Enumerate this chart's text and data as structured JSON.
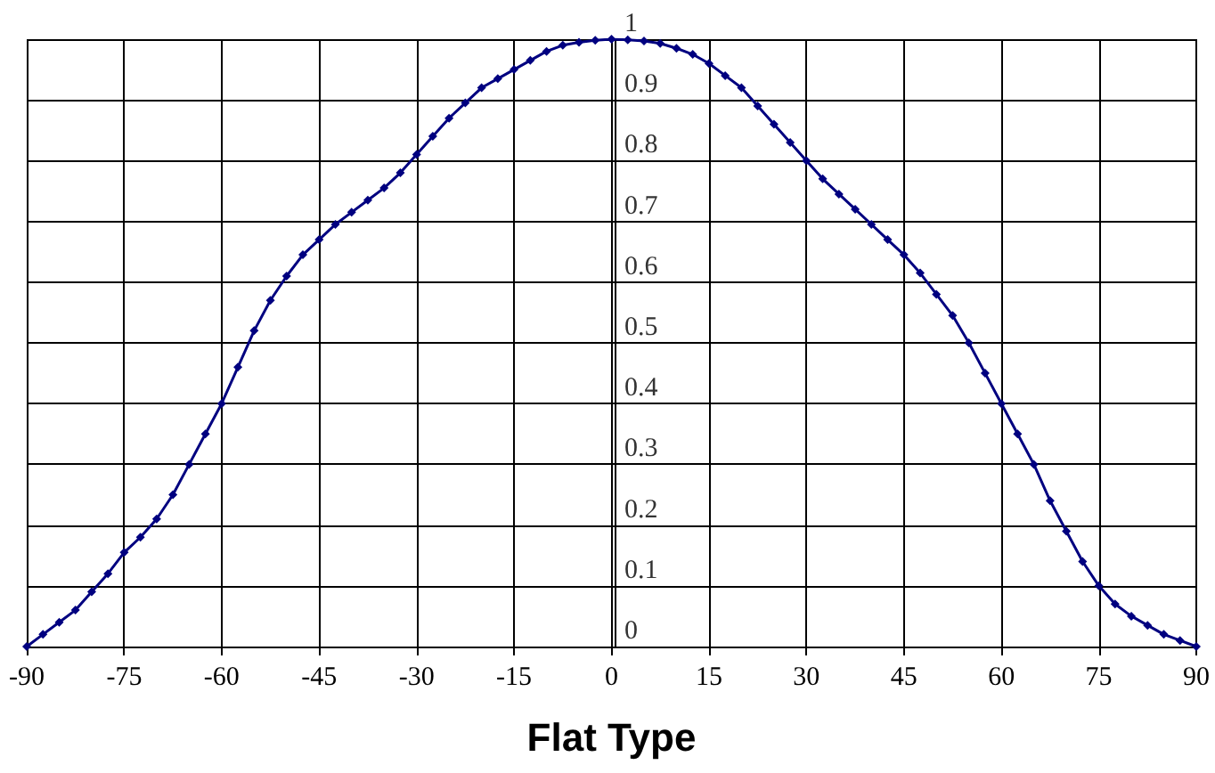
{
  "chart_data": {
    "type": "line",
    "xlabel": "Flat Type",
    "x": [
      -90,
      -87.5,
      -85,
      -82.5,
      -80,
      -77.5,
      -75,
      -72.5,
      -70,
      -67.5,
      -65,
      -62.5,
      -60,
      -57.5,
      -55,
      -52.5,
      -50,
      -47.5,
      -45,
      -42.5,
      -40,
      -37.5,
      -35,
      -32.5,
      -30,
      -27.5,
      -25,
      -22.5,
      -20,
      -17.5,
      -15,
      -12.5,
      -10,
      -7.5,
      -5,
      -2.5,
      0,
      2.5,
      5,
      7.5,
      10,
      12.5,
      15,
      17.5,
      20,
      22.5,
      25,
      27.5,
      30,
      32.5,
      35,
      37.5,
      40,
      42.5,
      45,
      47.5,
      50,
      52.5,
      55,
      57.5,
      60,
      62.5,
      65,
      67.5,
      70,
      72.5,
      75,
      77.5,
      80,
      82.5,
      85,
      87.5,
      90
    ],
    "series": [
      {
        "color": "#000080",
        "values": [
          0,
          0.02,
          0.04,
          0.06,
          0.09,
          0.12,
          0.155,
          0.18,
          0.21,
          0.25,
          0.3,
          0.35,
          0.4,
          0.46,
          0.52,
          0.57,
          0.61,
          0.645,
          0.67,
          0.695,
          0.715,
          0.735,
          0.755,
          0.78,
          0.81,
          0.84,
          0.87,
          0.895,
          0.92,
          0.935,
          0.95,
          0.965,
          0.98,
          0.99,
          0.995,
          0.998,
          1,
          0.999,
          0.997,
          0.993,
          0.985,
          0.975,
          0.96,
          0.94,
          0.92,
          0.89,
          0.86,
          0.83,
          0.8,
          0.77,
          0.745,
          0.72,
          0.695,
          0.67,
          0.645,
          0.615,
          0.58,
          0.545,
          0.5,
          0.45,
          0.4,
          0.35,
          0.3,
          0.24,
          0.19,
          0.14,
          0.1,
          0.07,
          0.05,
          0.035,
          0.02,
          0.01,
          0
        ]
      }
    ],
    "xlim": [
      -90,
      90
    ],
    "xticks": [
      -90,
      -75,
      -60,
      -45,
      -30,
      -15,
      0,
      15,
      30,
      45,
      60,
      75,
      90
    ],
    "ylim": [
      0,
      1
    ],
    "yticks": [
      0,
      0.1,
      0.2,
      0.3,
      0.4,
      0.5,
      0.6,
      0.7,
      0.8,
      0.9,
      1
    ],
    "grid": true,
    "marker": "diamond"
  }
}
